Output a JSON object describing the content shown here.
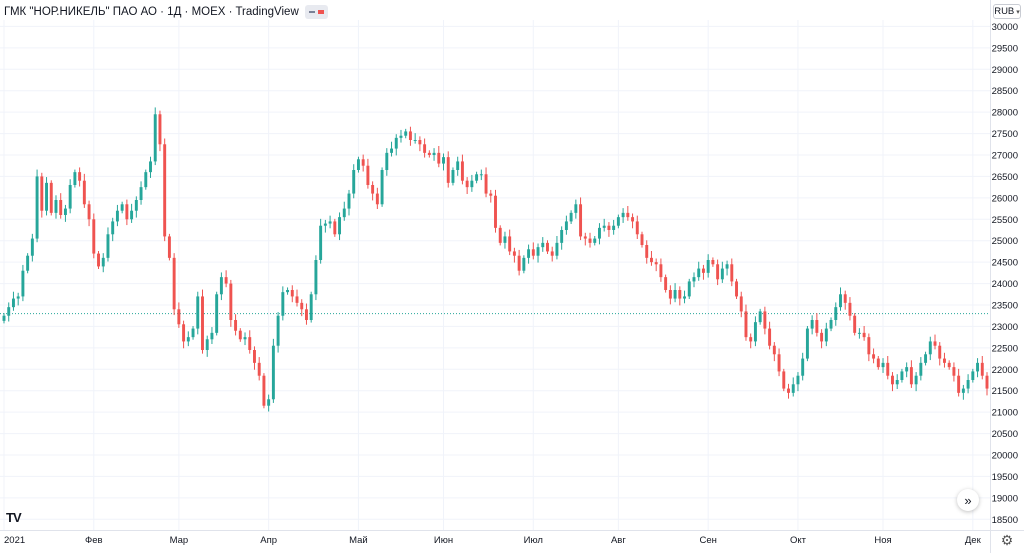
{
  "header": {
    "title": "ГМК \"НОР.НИКЕЛЬ\" ПАО АО · 1Д · MOEX · TradingView"
  },
  "currency": {
    "label": "RUB",
    "caret": "▾"
  },
  "icons": {
    "scroll_right": "chevron-double-right-icon",
    "logo": "tradingview-logo-icon",
    "settings": "gear-icon"
  },
  "logo_text": "TV",
  "scroll_glyph": "»",
  "gear_glyph": "⚙",
  "colors": {
    "up": "#26a69a",
    "down": "#ef5350",
    "grid": "#f0f3fa",
    "axis_text": "#131722",
    "dotted_line": "#26a69a"
  },
  "chart_data": {
    "type": "candlestick",
    "y_axis": {
      "ylim": [
        18250,
        30150
      ],
      "ticks": [
        18500,
        19000,
        19500,
        20000,
        20500,
        21000,
        21500,
        22000,
        22500,
        23000,
        23500,
        24000,
        24500,
        25000,
        25500,
        26000,
        26500,
        27000,
        27500,
        28000,
        28500,
        29000,
        29500,
        30000
      ],
      "position": "right"
    },
    "x_axis": {
      "labels": [
        "2021",
        "Фев",
        "Мар",
        "Апр",
        "Май",
        "Июн",
        "Июл",
        "Авг",
        "Сен",
        "Окт",
        "Ноя",
        "Дек"
      ]
    },
    "reference_line": 23300,
    "series_close": [
      23250,
      23450,
      23650,
      23700,
      24300,
      24650,
      25050,
      26500,
      25700,
      26350,
      25650,
      25950,
      25600,
      25750,
      26300,
      26600,
      26400,
      25850,
      25500,
      24700,
      24400,
      24600,
      25150,
      25450,
      25700,
      25850,
      25500,
      25700,
      25950,
      26250,
      26600,
      26850,
      27950,
      27250,
      25100,
      24600,
      23400,
      23050,
      22650,
      22750,
      22950,
      23700,
      22450,
      22700,
      22850,
      23750,
      24150,
      24000,
      23150,
      22900,
      22700,
      22750,
      22450,
      22150,
      21850,
      21150,
      21300,
      22550,
      23250,
      23800,
      23850,
      23700,
      23550,
      23400,
      23150,
      23750,
      24550,
      25350,
      25400,
      25450,
      25150,
      25550,
      25750,
      26100,
      26650,
      26900,
      26750,
      26300,
      26100,
      25850,
      26650,
      27050,
      27150,
      27400,
      27450,
      27550,
      27350,
      27350,
      27250,
      27050,
      27000,
      27050,
      26800,
      26950,
      26350,
      26650,
      26850,
      26400,
      26250,
      26400,
      26550,
      26550,
      26100,
      26050,
      25300,
      24950,
      25100,
      24750,
      24650,
      24300,
      24600,
      24800,
      24650,
      24850,
      24950,
      24750,
      24650,
      24950,
      25250,
      25450,
      25650,
      25850,
      25100,
      25050,
      24950,
      25050,
      25300,
      25350,
      25250,
      25350,
      25550,
      25650,
      25550,
      25450,
      25150,
      24900,
      24600,
      24500,
      24450,
      24150,
      23850,
      23650,
      23850,
      23650,
      23700,
      24050,
      24150,
      24350,
      24250,
      24550,
      24450,
      24100,
      24350,
      24450,
      24050,
      23700,
      23350,
      22750,
      22650,
      23100,
      23350,
      22950,
      22550,
      22350,
      21950,
      21550,
      21450,
      21650,
      21850,
      22250,
      22950,
      23150,
      22850,
      22650,
      22950,
      23150,
      23450,
      23750,
      23550,
      23250,
      22850,
      22850,
      22750,
      22350,
      22250,
      22050,
      22150,
      21850,
      21650,
      21750,
      21950,
      22050,
      21650,
      21850,
      22150,
      22350,
      22650,
      22550,
      22250,
      22150,
      22050,
      21850,
      21450,
      21550,
      21750,
      21950,
      22150,
      21850,
      21550
    ]
  }
}
